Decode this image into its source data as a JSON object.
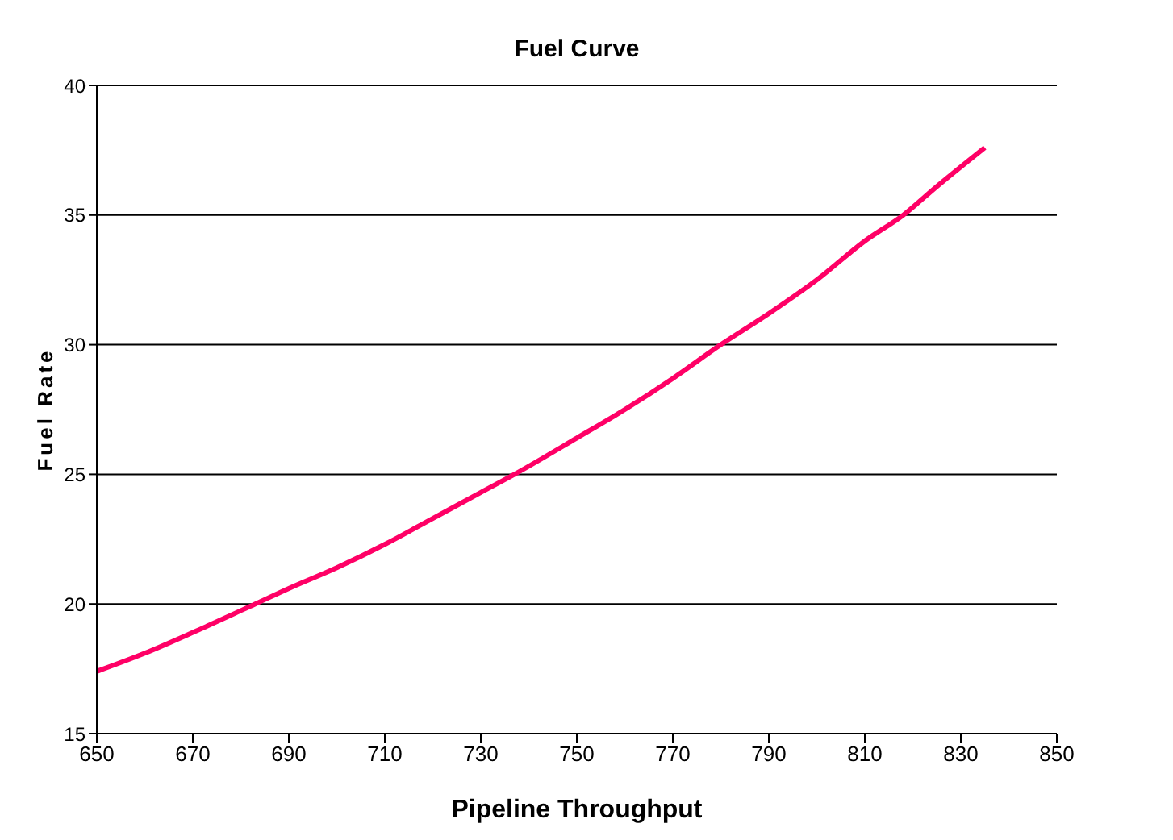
{
  "chart_data": {
    "type": "line",
    "title": "Fuel Curve",
    "xlabel": "Pipeline Throughput",
    "ylabel": "Fuel Rate",
    "x": [
      650,
      660,
      670,
      683,
      690,
      700,
      710,
      720,
      730,
      737,
      750,
      760,
      770,
      780,
      790,
      800,
      810,
      818,
      825,
      835
    ],
    "series": [
      {
        "color": "#ff0066",
        "values": [
          17.4,
          18.1,
          18.9,
          20.0,
          20.6,
          21.4,
          22.3,
          23.3,
          24.3,
          25.0,
          26.4,
          27.5,
          28.7,
          30.0,
          31.2,
          32.5,
          34.0,
          35.0,
          36.1,
          37.6
        ]
      }
    ],
    "xlim": [
      650,
      850
    ],
    "xticks": [
      650,
      670,
      690,
      710,
      730,
      750,
      770,
      790,
      810,
      830,
      850
    ],
    "ylim": [
      15,
      40
    ],
    "yticks": [
      15,
      20,
      25,
      30,
      35,
      40
    ],
    "grid": "y",
    "marker": "none",
    "line_style": "solid"
  }
}
